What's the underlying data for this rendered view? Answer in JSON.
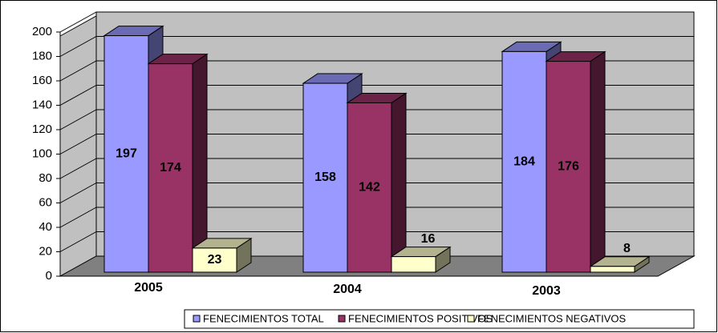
{
  "chart_data": {
    "type": "bar3d",
    "categories": [
      "2005",
      "2004",
      "2003"
    ],
    "series": [
      {
        "name": "FENECIMIENTOS TOTAL",
        "color": "#9999ff",
        "values": [
          197,
          158,
          184
        ]
      },
      {
        "name": "FENECIMIENTOS POSITIVOS",
        "color": "#993366",
        "values": [
          174,
          142,
          176
        ]
      },
      {
        "name": "FENECIMIENTOS NEGATIVOS",
        "color": "#ffffcc",
        "values": [
          23,
          16,
          8
        ]
      }
    ],
    "ylim": [
      0,
      200
    ],
    "yticks": [
      0,
      20,
      40,
      60,
      80,
      100,
      120,
      140,
      160,
      180,
      200
    ],
    "grid": true,
    "legend": "bottom"
  }
}
